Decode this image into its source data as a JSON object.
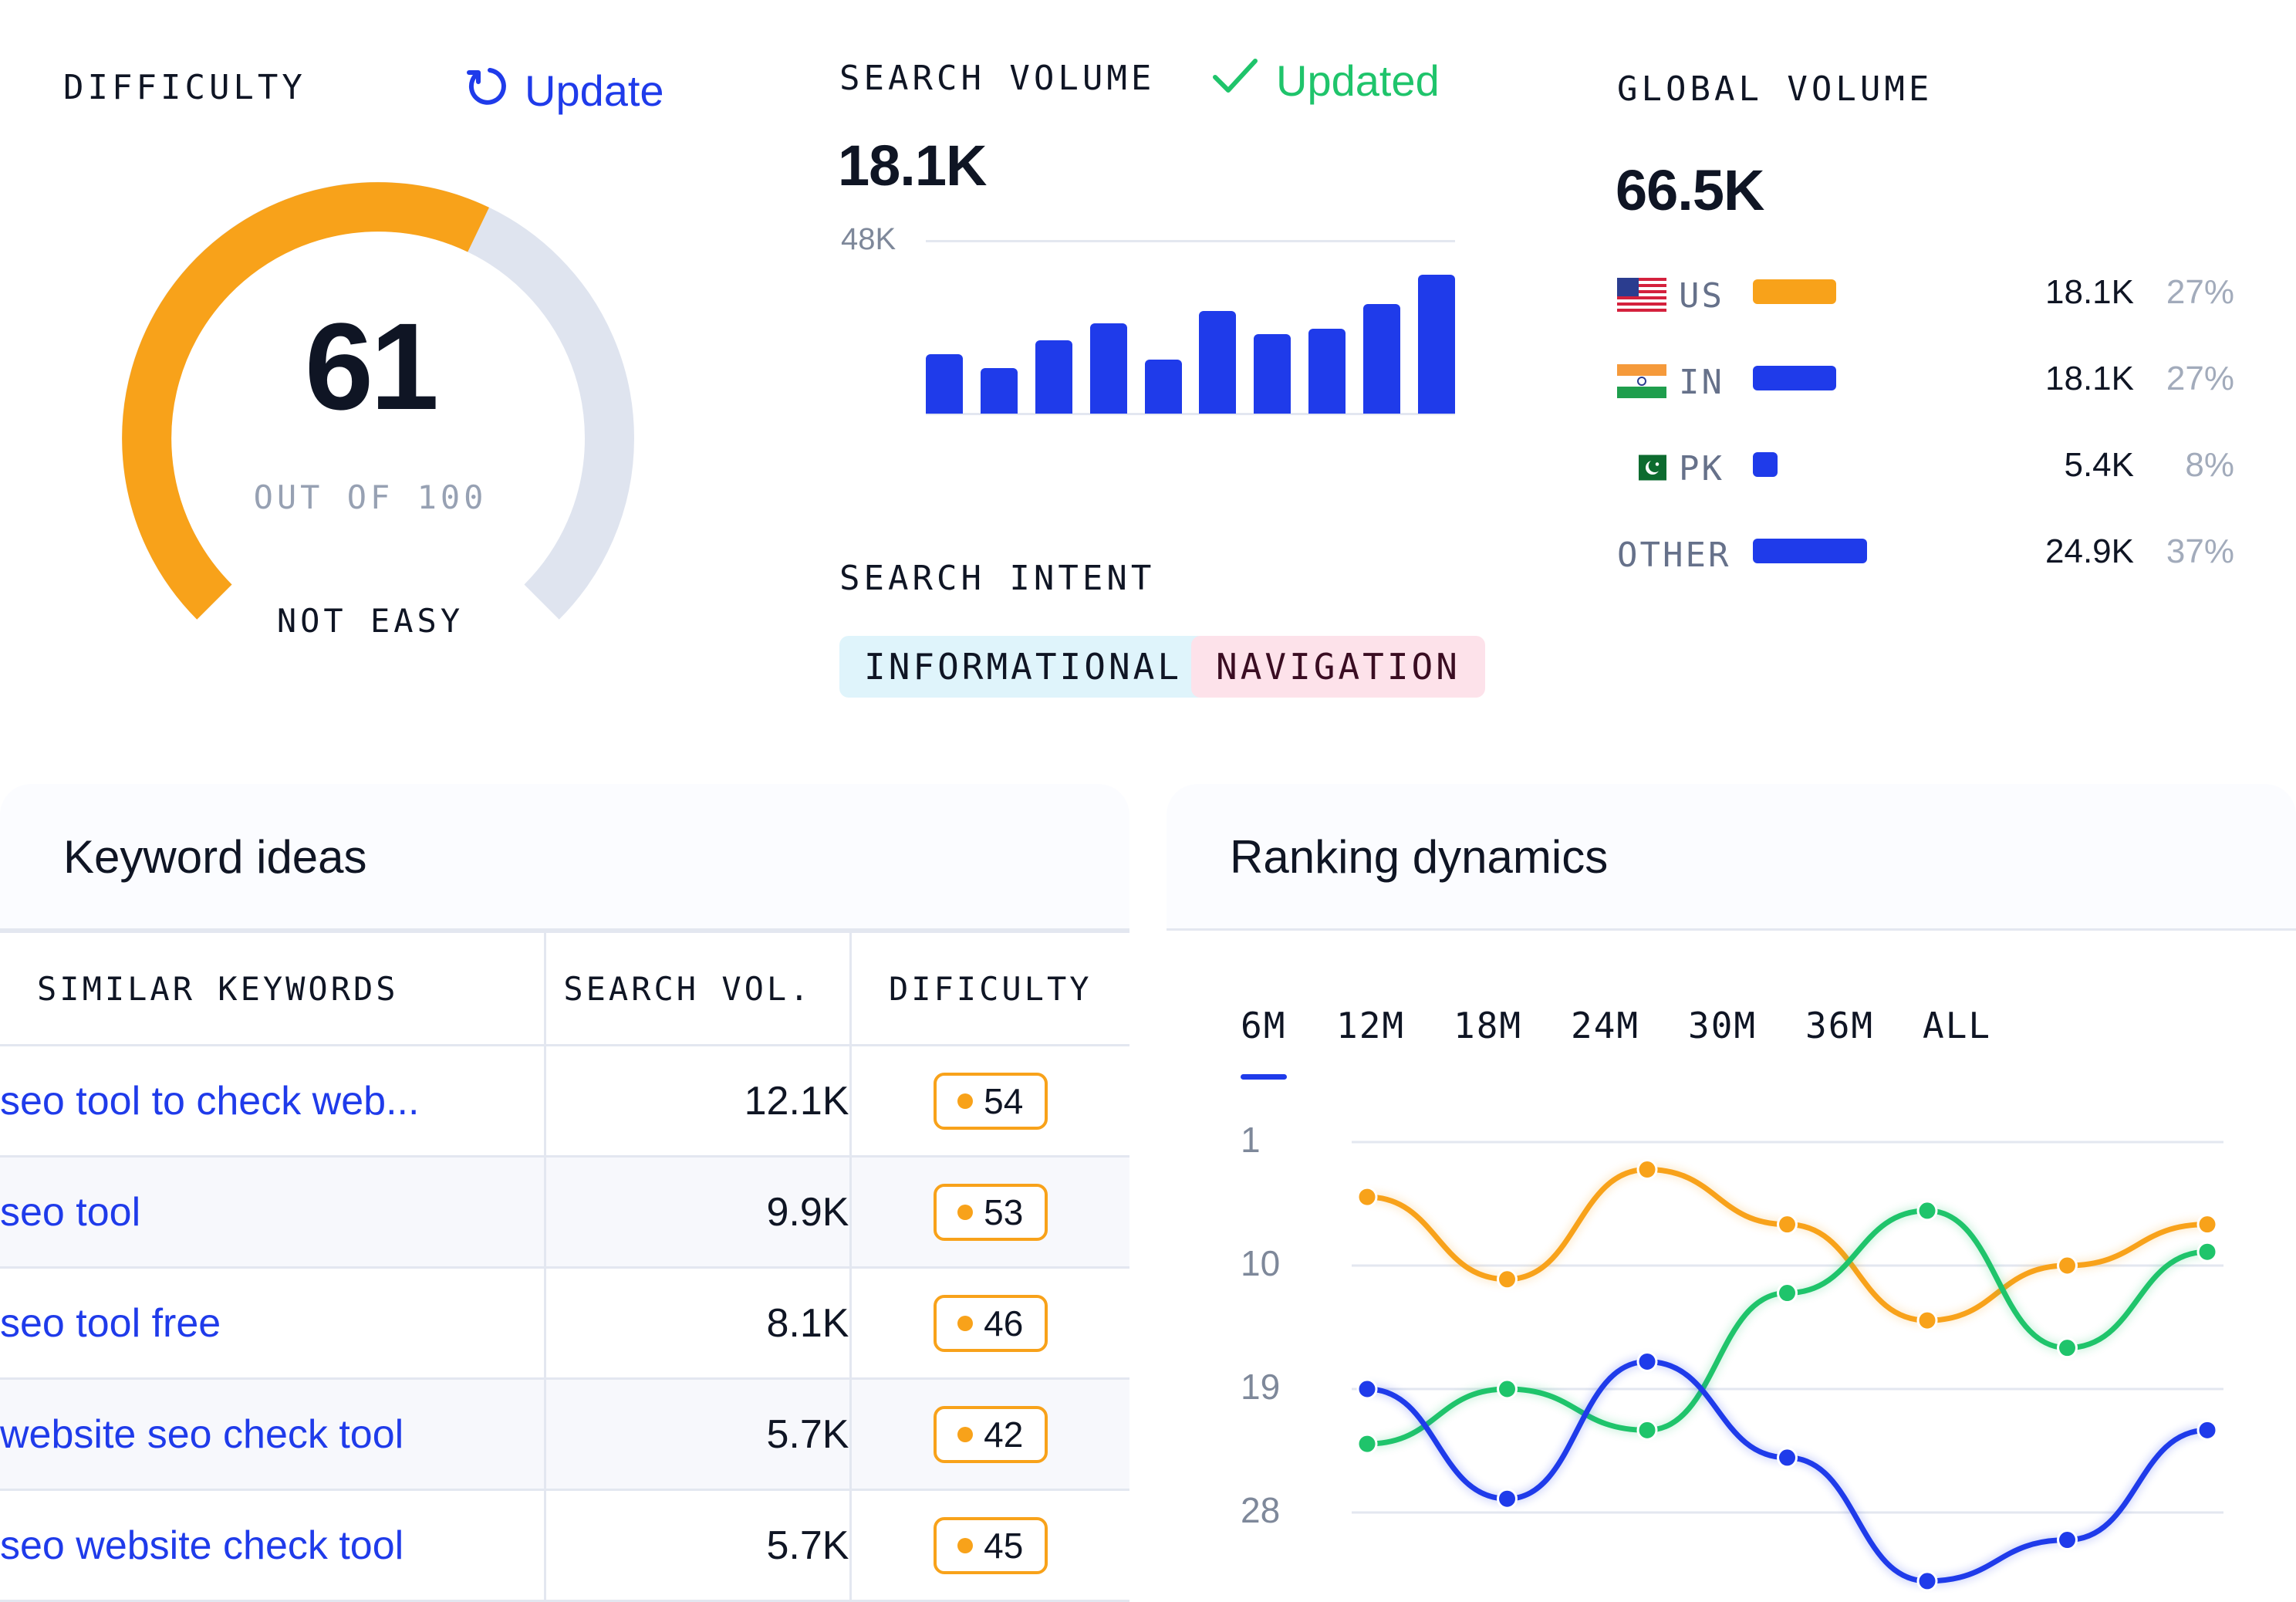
{
  "difficulty": {
    "label": "DIFFICULTY",
    "update_label": "Update",
    "score": "61",
    "out_of": "OUT OF 100",
    "level": "NOT EASY",
    "score_value": 61,
    "max": 100,
    "colors": {
      "fill": "#f8a21a",
      "track": "#dfe4ef"
    }
  },
  "search_volume": {
    "label": "SEARCH VOLUME",
    "status": "Updated",
    "value": "18.1K",
    "axis_max_label": "48K",
    "bars_relative": [
      0.43,
      0.33,
      0.53,
      0.65,
      0.39,
      0.74,
      0.57,
      0.61,
      0.79,
      1.0
    ],
    "colors": {
      "bar": "#1f3bea",
      "status": "#1fc46b"
    }
  },
  "search_intent": {
    "label": "SEARCH INTENT",
    "tags": [
      {
        "text": "INFORMATIONAL",
        "bg": "#dff4fb",
        "color": "#0f1524"
      },
      {
        "text": "NAVIGATION",
        "bg": "#fde2ea",
        "color": "#3a0d22"
      }
    ]
  },
  "global_volume": {
    "label": "GLOBAL VOLUME",
    "value": "66.5K",
    "countries": [
      {
        "code": "US",
        "flag": "us-flag-icon",
        "volume": "18.1K",
        "percent": "27%",
        "share": 0.27,
        "bar_color": "#f8a21a"
      },
      {
        "code": "IN",
        "flag": "india-flag-icon",
        "volume": "18.1K",
        "percent": "27%",
        "share": 0.27,
        "bar_color": "#1f3bea"
      },
      {
        "code": "PK",
        "flag": "pakistan-flag-icon",
        "volume": "5.4K",
        "percent": "8%",
        "share": 0.08,
        "bar_color": "#1f3bea"
      },
      {
        "code": "OTHER",
        "flag": "",
        "volume": "24.9K",
        "percent": "37%",
        "share": 0.37,
        "bar_color": "#1f3bea"
      }
    ]
  },
  "keyword_ideas": {
    "title": "Keyword ideas",
    "columns": [
      "SIMILAR KEYWORDS",
      "SEARCH VOL.",
      "DIFICULTY"
    ],
    "rows": [
      {
        "keyword": "seo tool to check web...",
        "volume": "12.1K",
        "difficulty": "54"
      },
      {
        "keyword": "seo tool",
        "volume": "9.9K",
        "difficulty": "53"
      },
      {
        "keyword": "seo tool free",
        "volume": "8.1K",
        "difficulty": "46"
      },
      {
        "keyword": "website seo check tool",
        "volume": "5.7K",
        "difficulty": "42"
      },
      {
        "keyword": "seo website check tool",
        "volume": "5.7K",
        "difficulty": "45"
      }
    ],
    "badge_color": "#f8a21a"
  },
  "ranking_dynamics": {
    "title": "Ranking dynamics",
    "tabs": [
      "6M",
      "12M",
      "18M",
      "24M",
      "30M",
      "36M",
      "ALL"
    ],
    "active_tab": "6M"
  },
  "chart_data": {
    "type": "line",
    "y_ticks": [
      "1",
      "10",
      "19",
      "28"
    ],
    "ylim": [
      1,
      28
    ],
    "y_inverted": true,
    "grid": true,
    "series": [
      {
        "color": "#f8a21a",
        "values": [
          5,
          11,
          3,
          7,
          14,
          10,
          7
        ]
      },
      {
        "color": "#1fc46b",
        "values": [
          23,
          19,
          22,
          12,
          6,
          16,
          9
        ]
      },
      {
        "color": "#1f3bea",
        "values": [
          19,
          27,
          17,
          24,
          33,
          30,
          22
        ]
      }
    ]
  }
}
